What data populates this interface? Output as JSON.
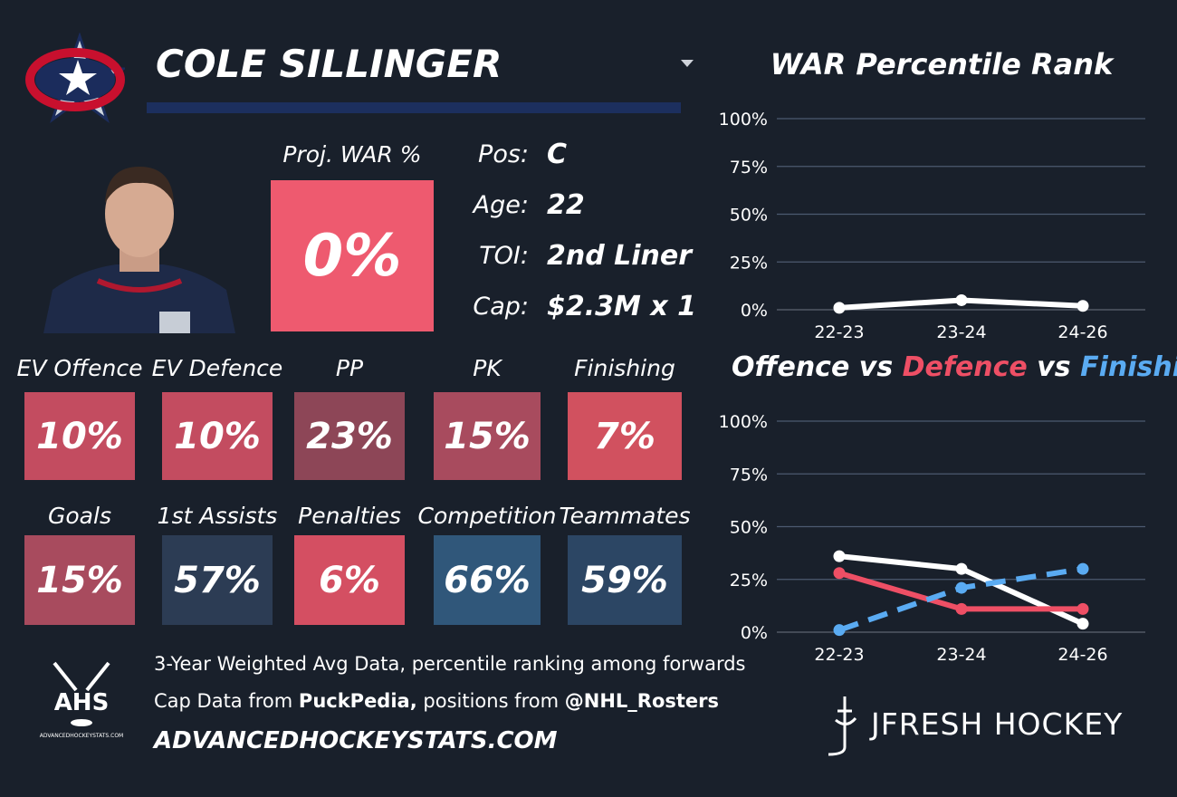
{
  "header": {
    "name": "COLE SILLINGER"
  },
  "projected": {
    "label": "Proj. WAR %",
    "value": "0%",
    "color": "#ee5a6f"
  },
  "info": [
    {
      "label": "Pos:",
      "value": "C"
    },
    {
      "label": "Age:",
      "value": "22"
    },
    {
      "label": "TOI:",
      "value": "2nd Liner"
    },
    {
      "label": "Cap:",
      "value": "$2.3M x 1"
    }
  ],
  "tiles": [
    {
      "label": "EV Offence",
      "value": "10%",
      "color": "#c34c60"
    },
    {
      "label": "EV Defence",
      "value": "10%",
      "color": "#c34c60"
    },
    {
      "label": "PP",
      "value": "23%",
      "color": "#8d4657"
    },
    {
      "label": "PK",
      "value": "15%",
      "color": "#a84b5e"
    },
    {
      "label": "Finishing",
      "value": "7%",
      "color": "#d1515f"
    },
    {
      "label": "Goals",
      "value": "15%",
      "color": "#a84b5e"
    },
    {
      "label": "1st Assists",
      "value": "57%",
      "color": "#2c3c54"
    },
    {
      "label": "Penalties",
      "value": "6%",
      "color": "#d44f62"
    },
    {
      "label": "Competition",
      "value": "66%",
      "color": "#30577a"
    },
    {
      "label": "Teammates",
      "value": "59%",
      "color": "#2c4664"
    }
  ],
  "footer": {
    "note": "3-Year Weighted Avg Data, percentile ranking among forwards",
    "cap_prefix": "Cap Data from",
    "cap_source": "PuckPedia,",
    "pos_prefix": "positions from",
    "pos_source": "@NHL_Rosters",
    "site": "ADVANCEDHOCKEYSTATS.COM",
    "logo_text": "AHS",
    "logo_site": "ADVANCEDHOCKEYSTATS.COM",
    "brand": "JFRESH HOCKEY"
  },
  "chart_data": [
    {
      "type": "line",
      "title": "WAR Percentile Rank",
      "categories": [
        "22-23",
        "23-24",
        "24-26"
      ],
      "values": [
        1,
        5,
        2
      ],
      "color": "#ffffff",
      "ylim": [
        0,
        100
      ],
      "yticks": [
        {
          "value": 0,
          "label": "0%"
        },
        {
          "value": 25,
          "label": "25%"
        },
        {
          "value": 50,
          "label": "50%"
        },
        {
          "value": 75,
          "label": "75%"
        },
        {
          "value": 100,
          "label": "100%"
        }
      ],
      "grid": true
    },
    {
      "type": "line",
      "connectors": [
        "vs",
        "vs"
      ],
      "categories": [
        "22-23",
        "23-24",
        "24-26"
      ],
      "series": [
        {
          "name": "Offence",
          "color": "#ffffff",
          "values": [
            36,
            30,
            4
          ]
        },
        {
          "name": "Defence",
          "color": "#ee4f65",
          "values": [
            28,
            11,
            11
          ]
        },
        {
          "name": "Finishing",
          "color": "#5aabf2",
          "values": [
            1,
            21,
            30
          ],
          "dashed": true
        }
      ],
      "ylim": [
        0,
        100
      ],
      "yticks": [
        {
          "value": 0,
          "label": "0%"
        },
        {
          "value": 25,
          "label": "25%"
        },
        {
          "value": 50,
          "label": "50%"
        },
        {
          "value": 75,
          "label": "75%"
        },
        {
          "value": 100,
          "label": "100%"
        }
      ],
      "grid": true
    }
  ]
}
